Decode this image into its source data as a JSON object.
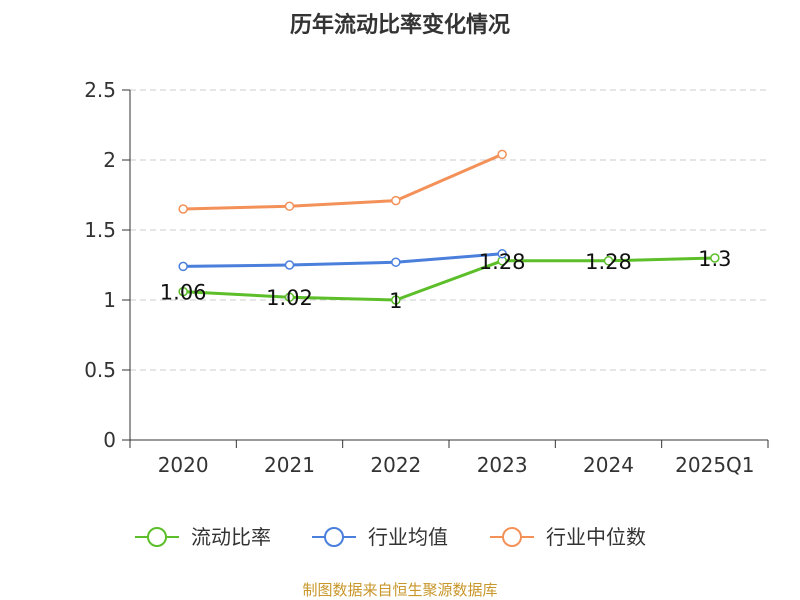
{
  "chart_data": {
    "type": "line",
    "title": "历年流动比率变化情况",
    "categories": [
      "2020",
      "2021",
      "2022",
      "2023",
      "2024",
      "2025Q1"
    ],
    "yticks": [
      "0",
      "0.5",
      "1",
      "1.5",
      "2",
      "2.5"
    ],
    "ylim": [
      0,
      2.5
    ],
    "grid": true,
    "legend_position": "bottom",
    "series": [
      {
        "name": "流动比率",
        "color": "#5cbf2a",
        "values": [
          1.06,
          1.02,
          1.0,
          1.28,
          1.28,
          1.3
        ],
        "labels": [
          "1.06",
          "1.02",
          "1",
          "1.28",
          "1.28",
          "1.3"
        ]
      },
      {
        "name": "行业均值",
        "color": "#4a7fdc",
        "values": [
          1.24,
          1.25,
          1.27,
          1.33,
          null,
          null
        ]
      },
      {
        "name": "行业中位数",
        "color": "#f39158",
        "values": [
          1.65,
          1.67,
          1.71,
          2.04,
          null,
          null
        ]
      }
    ]
  },
  "source": "制图数据来自恒生聚源数据库"
}
